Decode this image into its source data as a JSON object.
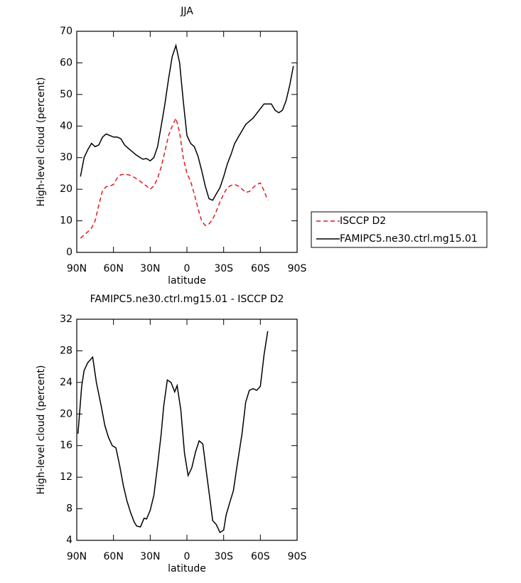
{
  "chart_data": [
    {
      "type": "line",
      "title": "JJA",
      "xlabel": "latitude",
      "ylabel": "High-level cloud (percent)",
      "x": [
        87,
        84,
        81,
        78,
        75,
        72,
        69,
        66,
        63,
        60,
        57,
        54,
        51,
        48,
        45,
        42,
        39,
        36,
        33,
        30,
        27,
        24,
        21,
        18,
        15,
        12,
        9,
        6,
        3,
        0,
        -3,
        -6,
        -9,
        -12,
        -15,
        -18,
        -21,
        -24,
        -27,
        -30,
        -33,
        -36,
        -39,
        -42,
        -45,
        -48,
        -51,
        -54,
        -57,
        -60,
        -63,
        -66,
        -69,
        -72,
        -75,
        -78,
        -81,
        -84,
        -87
      ],
      "series": [
        {
          "name": "ISCCP D2",
          "color": "#e31a1c",
          "dash": true,
          "values": [
            4.5,
            5.5,
            6.5,
            7.7,
            10,
            15,
            19.5,
            20.8,
            21,
            21.5,
            23.5,
            24.6,
            24.7,
            24.6,
            24.2,
            23.5,
            22.8,
            21.8,
            21,
            20,
            21,
            23.5,
            27,
            32,
            37,
            40,
            42.5,
            38,
            30,
            25,
            22.5,
            18.5,
            14,
            10,
            8.5,
            9,
            10.5,
            13,
            16,
            18.5,
            20.5,
            21.2,
            21.5,
            21,
            20,
            19,
            19.3,
            20.5,
            21.5,
            22,
            19.5,
            16.5,
            null,
            null,
            null,
            null,
            null,
            null,
            null
          ]
        },
        {
          "name": "FAMIPC5.ne30.ctrl.mg15.01",
          "color": "#000000",
          "dash": false,
          "values": [
            24,
            30,
            32.5,
            34.5,
            33.5,
            34,
            36.5,
            37.5,
            37,
            36.5,
            36.5,
            36,
            34,
            33,
            32,
            31,
            30.2,
            29.5,
            29.7,
            29,
            30,
            33.5,
            40,
            47,
            55,
            62,
            65.5,
            60,
            48,
            37,
            34.5,
            33.5,
            30.5,
            26,
            21,
            17,
            16.5,
            18.5,
            20.5,
            24,
            28,
            31,
            34.5,
            36.5,
            38.5,
            40.5,
            41.5,
            42.5,
            44,
            45.5,
            47,
            47,
            47,
            45,
            44.2,
            45,
            48,
            53,
            59
          ]
        }
      ],
      "xlim": [
        90,
        -90
      ],
      "ylim": [
        0,
        70
      ],
      "xticks": [
        {
          "value": 90,
          "label": "90N"
        },
        {
          "value": 60,
          "label": "60N"
        },
        {
          "value": 30,
          "label": "30N"
        },
        0,
        {
          "value": -30,
          "label": "30S"
        },
        {
          "value": -60,
          "label": "60S"
        },
        {
          "value": -90,
          "label": "90S"
        }
      ],
      "yticks": [
        0,
        10,
        20,
        30,
        40,
        50,
        60,
        70
      ],
      "legend": "right"
    },
    {
      "type": "line",
      "title": "FAMIPC5.ne30.ctrl.mg15.01 - ISCCP D2",
      "xlabel": "latitude",
      "ylabel": "High-level cloud (percent)",
      "x": [
        89,
        86,
        84,
        81,
        77,
        74,
        70,
        67,
        64,
        61,
        58,
        55,
        52,
        49,
        46,
        43,
        41,
        38,
        35,
        33,
        30,
        27,
        24,
        21,
        19,
        16,
        13,
        10,
        8,
        5,
        2,
        -1,
        -4,
        -7,
        -10,
        -13,
        -16,
        -19,
        -21,
        -24,
        -27,
        -30,
        -32,
        -35,
        -38,
        -41,
        -45,
        -48,
        -51,
        -54,
        -57,
        -60,
        -63,
        -66
      ],
      "series": [
        {
          "color": "#000000",
          "dash": false,
          "values": [
            17.5,
            23.5,
            25.5,
            26.5,
            27.2,
            24,
            21,
            18.5,
            17,
            16,
            15.7,
            13.5,
            11,
            9,
            7.5,
            6.3,
            5.8,
            5.7,
            6.8,
            6.7,
            7.8,
            9.7,
            13.5,
            17.5,
            21,
            24.3,
            24,
            22.8,
            23.6,
            20.5,
            15,
            12.2,
            13.2,
            15.2,
            16.6,
            16.2,
            12.5,
            9,
            6.5,
            6,
            5,
            5.3,
            7.2,
            8.8,
            10.3,
            13.5,
            17.5,
            21.5,
            23,
            23.2,
            23,
            23.5,
            27.5,
            30.5
          ]
        }
      ],
      "xlim": [
        90,
        -90
      ],
      "ylim": [
        4,
        32
      ],
      "xticks": [
        {
          "value": 90,
          "label": "90N"
        },
        {
          "value": 60,
          "label": "60N"
        },
        {
          "value": 30,
          "label": "30N"
        },
        0,
        {
          "value": -30,
          "label": "30S"
        },
        {
          "value": -60,
          "label": "60S"
        },
        {
          "value": -90,
          "label": "90S"
        }
      ],
      "yticks": [
        4,
        8,
        12,
        16,
        20,
        24,
        28,
        32
      ]
    }
  ]
}
